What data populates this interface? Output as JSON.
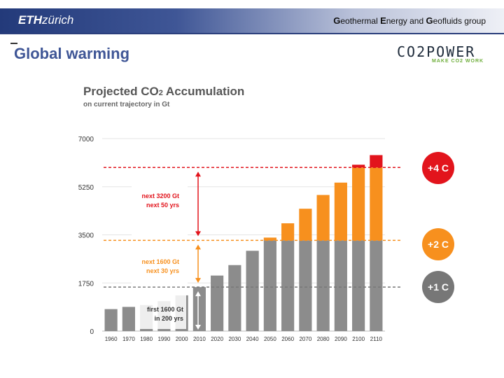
{
  "header": {
    "logo_bold": "ETH",
    "logo_rest": "zürich",
    "group_g1": "G",
    "group_w1": "eothermal ",
    "group_g2": "E",
    "group_w2": "nergy and ",
    "group_g3": "G",
    "group_w3": "eofluids",
    "group_w4": " group"
  },
  "slide": {
    "title": "Global warming"
  },
  "brand": {
    "name": "CO2POWER",
    "tagline": "MAKE CO2 WORK"
  },
  "chart_data": {
    "type": "bar",
    "title_main": "Projected CO",
    "title_sub": "2",
    "title_end": " Accumulation",
    "subtitle": "on current trajectory in Gt",
    "categories": [
      "1960",
      "1970",
      "1980",
      "1990",
      "2000",
      "2010",
      "2020",
      "2030",
      "2040",
      "2050",
      "2060",
      "2070",
      "2080",
      "2090",
      "2100",
      "2110"
    ],
    "values": [
      800,
      880,
      950,
      1090,
      1300,
      1600,
      2020,
      2400,
      2920,
      3400,
      3920,
      4450,
      4950,
      5400,
      6050,
      6400
    ],
    "ylim": [
      0,
      7000
    ],
    "yticks": [
      0,
      1750,
      3500,
      5250,
      7000
    ],
    "thresholds": [
      {
        "value": 1600,
        "label": "+1 C",
        "color": "#777777"
      },
      {
        "value": 3300,
        "label": "+2 C",
        "color": "#f7901e"
      },
      {
        "value": 5950,
        "label": "+4 C",
        "color": "#e2141c"
      }
    ],
    "colors": {
      "grey": "#8c8c8c",
      "orange": "#f7901e",
      "red": "#e2141c"
    },
    "annotations": {
      "red_l1": "next 3200 Gt",
      "red_l2": "next 50 yrs",
      "orange_l1": "next 1600 Gt",
      "orange_l2": "next 30 yrs",
      "grey_l1": "first 1600 Gt",
      "grey_l2": "in 200 yrs"
    }
  }
}
